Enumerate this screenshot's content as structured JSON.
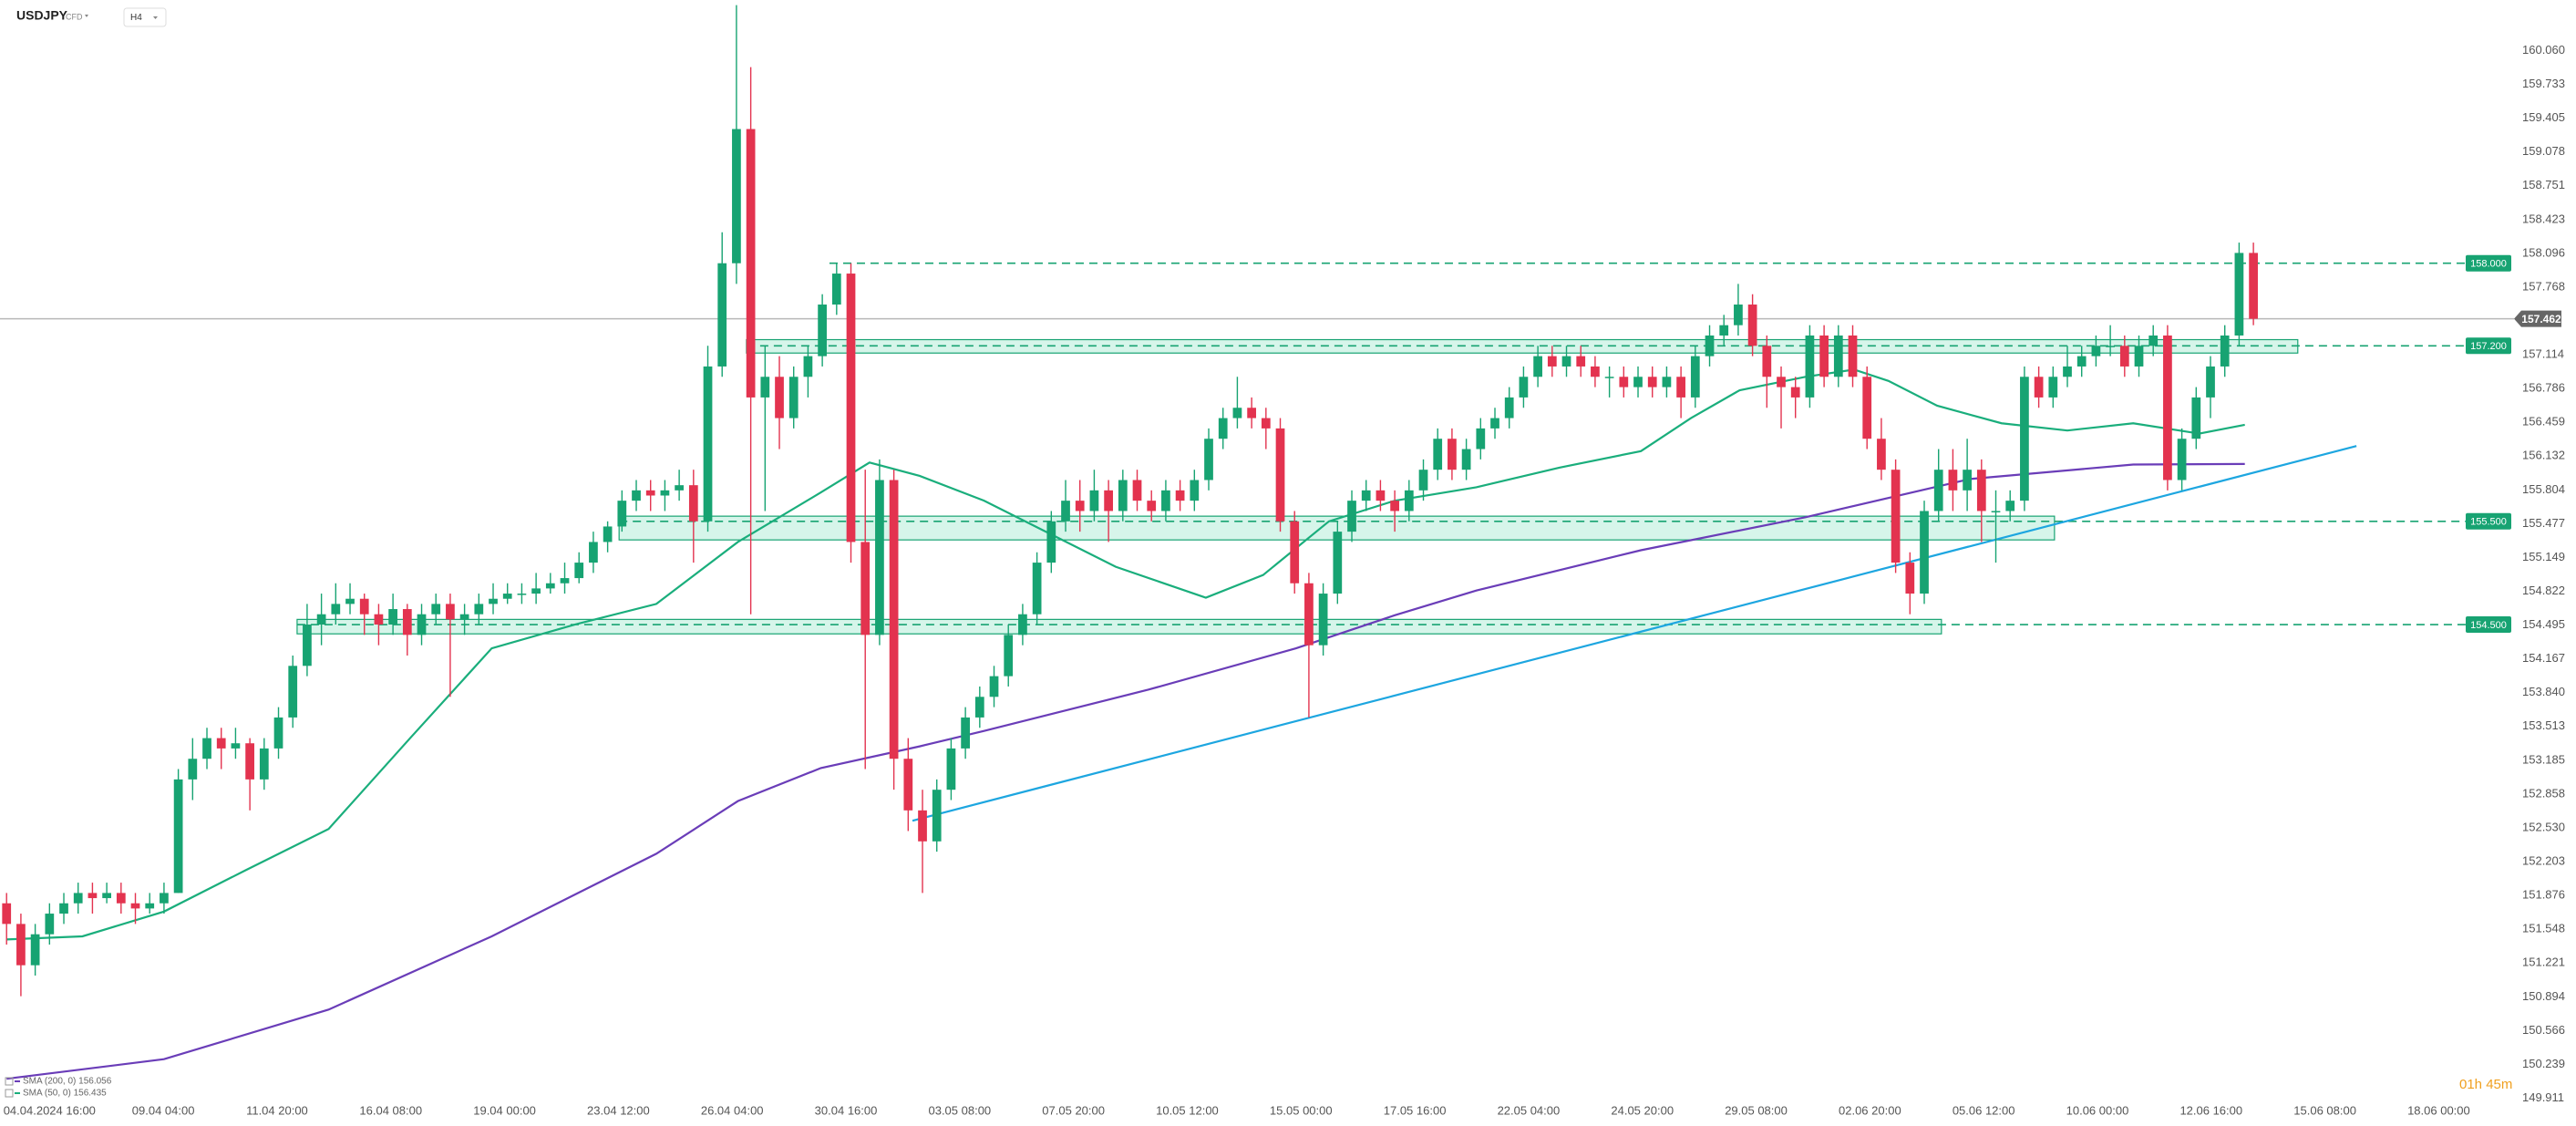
{
  "chart_data": {
    "type": "candlestick",
    "title": "USDJPY",
    "subtitle": "CFD",
    "timeframe": "H4",
    "timer": "01h 45m",
    "up_color": "#17a372",
    "down_color": "#e3334f",
    "grid": false,
    "xlim": [
      -0.46,
      174.7
    ],
    "ylim": [
      149.89,
      160.55
    ],
    "yticks": [
      {
        "value": 160.06,
        "label": "160.060"
      },
      159.733,
      159.405,
      159.078,
      158.751,
      158.423,
      158.096,
      157.768,
      157.114,
      156.786,
      156.459,
      156.132,
      155.804,
      155.477,
      155.149,
      154.822,
      154.495,
      154.167,
      {
        "value": 153.84,
        "label": "153.840"
      },
      153.513,
      153.185,
      152.858,
      {
        "value": 152.53,
        "label": "152.530"
      },
      152.203,
      151.876,
      151.548,
      151.221,
      150.894,
      150.566,
      150.239,
      149.911
    ],
    "xticks": [
      {
        "value": 3,
        "label": "04.04.2024 16:00"
      },
      {
        "value": 10.95,
        "label": "09.04 04:00"
      },
      {
        "value": 18.9,
        "label": "11.04 20:00"
      },
      {
        "value": 26.85,
        "label": "16.04 08:00"
      },
      {
        "value": 34.8,
        "label": "19.04 00:00"
      },
      {
        "value": 42.75,
        "label": "23.04 12:00"
      },
      {
        "value": 50.7,
        "label": "26.04 04:00"
      },
      {
        "value": 58.65,
        "label": "30.04 16:00"
      },
      {
        "value": 66.6,
        "label": "03.05 08:00"
      },
      {
        "value": 74.55,
        "label": "07.05 20:00"
      },
      {
        "value": 82.5,
        "label": "10.05 12:00"
      },
      {
        "value": 90.45,
        "label": "15.05 00:00"
      },
      {
        "value": 98.4,
        "label": "17.05 16:00"
      },
      {
        "value": 106.35,
        "label": "22.05 04:00"
      },
      {
        "value": 114.3,
        "label": "24.05 20:00"
      },
      {
        "value": 122.25,
        "label": "29.05 08:00"
      },
      {
        "value": 130.2,
        "label": "02.06 20:00"
      },
      {
        "value": 138.15,
        "label": "05.06 12:00"
      },
      {
        "value": 146.1,
        "label": "10.06 00:00"
      },
      {
        "value": 154.05,
        "label": "12.06 16:00"
      },
      {
        "value": 162,
        "label": "15.06 08:00"
      },
      {
        "value": 169.95,
        "label": "18.06 00:00"
      }
    ],
    "ohlc": [
      [
        151.8,
        151.9,
        151.4,
        151.6
      ],
      [
        151.6,
        151.7,
        150.9,
        151.2
      ],
      [
        151.2,
        151.6,
        151.1,
        151.5
      ],
      [
        151.5,
        151.8,
        151.4,
        151.7
      ],
      [
        151.7,
        151.9,
        151.6,
        151.8
      ],
      [
        151.8,
        152.0,
        151.7,
        151.9
      ],
      [
        151.9,
        152.0,
        151.7,
        151.85
      ],
      [
        151.85,
        152.0,
        151.8,
        151.9
      ],
      [
        151.9,
        152.0,
        151.7,
        151.8
      ],
      [
        151.8,
        151.9,
        151.6,
        151.75
      ],
      [
        151.75,
        151.9,
        151.7,
        151.8
      ],
      [
        151.8,
        152.0,
        151.7,
        151.9
      ],
      [
        151.9,
        153.1,
        151.9,
        153.0
      ],
      [
        153.0,
        153.4,
        152.8,
        153.2
      ],
      [
        153.2,
        153.5,
        153.1,
        153.4
      ],
      [
        153.4,
        153.5,
        153.1,
        153.3
      ],
      [
        153.3,
        153.5,
        153.2,
        153.35
      ],
      [
        153.35,
        153.4,
        152.7,
        153.0
      ],
      [
        153.0,
        153.4,
        152.9,
        153.3
      ],
      [
        153.3,
        153.7,
        153.2,
        153.6
      ],
      [
        153.6,
        154.2,
        153.5,
        154.1
      ],
      [
        154.1,
        154.7,
        154.0,
        154.5
      ],
      [
        154.5,
        154.8,
        154.3,
        154.6
      ],
      [
        154.6,
        154.9,
        154.5,
        154.7
      ],
      [
        154.7,
        154.9,
        154.6,
        154.75
      ],
      [
        154.75,
        154.8,
        154.4,
        154.6
      ],
      [
        154.6,
        154.7,
        154.3,
        154.5
      ],
      [
        154.5,
        154.8,
        154.4,
        154.65
      ],
      [
        154.65,
        154.7,
        154.2,
        154.4
      ],
      [
        154.4,
        154.7,
        154.3,
        154.6
      ],
      [
        154.6,
        154.8,
        154.5,
        154.7
      ],
      [
        154.7,
        154.8,
        153.8,
        154.55
      ],
      [
        154.55,
        154.7,
        154.4,
        154.6
      ],
      [
        154.6,
        154.8,
        154.5,
        154.7
      ],
      [
        154.7,
        154.9,
        154.6,
        154.75
      ],
      [
        154.75,
        154.9,
        154.7,
        154.8
      ],
      [
        154.8,
        154.9,
        154.7,
        154.8
      ],
      [
        154.8,
        155.0,
        154.7,
        154.85
      ],
      [
        154.85,
        155.0,
        154.8,
        154.9
      ],
      [
        154.9,
        155.1,
        154.8,
        154.95
      ],
      [
        154.95,
        155.2,
        154.9,
        155.1
      ],
      [
        155.1,
        155.4,
        155.0,
        155.3
      ],
      [
        155.3,
        155.5,
        155.2,
        155.45
      ],
      [
        155.45,
        155.8,
        155.4,
        155.7
      ],
      [
        155.7,
        155.9,
        155.6,
        155.8
      ],
      [
        155.8,
        155.9,
        155.6,
        155.75
      ],
      [
        155.75,
        155.9,
        155.6,
        155.8
      ],
      [
        155.8,
        156.0,
        155.7,
        155.85
      ],
      [
        155.85,
        156.0,
        155.1,
        155.5
      ],
      [
        155.5,
        157.2,
        155.4,
        157.0
      ],
      [
        157.0,
        158.3,
        156.9,
        158.0
      ],
      [
        158.0,
        160.5,
        157.8,
        159.3
      ],
      [
        159.3,
        159.9,
        154.6,
        156.7
      ],
      [
        156.7,
        157.2,
        155.6,
        156.9
      ],
      [
        156.9,
        157.1,
        156.2,
        156.5
      ],
      [
        156.5,
        157.0,
        156.4,
        156.9
      ],
      [
        156.9,
        157.2,
        156.7,
        157.1
      ],
      [
        157.1,
        157.7,
        157.0,
        157.6
      ],
      [
        157.6,
        158.0,
        157.5,
        157.9
      ],
      [
        157.9,
        158.0,
        155.1,
        155.3
      ],
      [
        155.3,
        156.0,
        153.1,
        154.4
      ],
      [
        154.4,
        156.1,
        154.3,
        155.9
      ],
      [
        155.9,
        156.0,
        152.9,
        153.2
      ],
      [
        153.2,
        153.4,
        152.5,
        152.7
      ],
      [
        152.7,
        152.9,
        151.9,
        152.4
      ],
      [
        152.4,
        153.0,
        152.3,
        152.9
      ],
      [
        152.9,
        153.4,
        152.8,
        153.3
      ],
      [
        153.3,
        153.7,
        153.2,
        153.6
      ],
      [
        153.6,
        153.9,
        153.5,
        153.8
      ],
      [
        153.8,
        154.1,
        153.7,
        154.0
      ],
      [
        154.0,
        154.5,
        153.9,
        154.4
      ],
      [
        154.4,
        154.7,
        154.3,
        154.6
      ],
      [
        154.6,
        155.2,
        154.5,
        155.1
      ],
      [
        155.1,
        155.6,
        155.0,
        155.5
      ],
      [
        155.5,
        155.9,
        155.4,
        155.7
      ],
      [
        155.7,
        155.9,
        155.4,
        155.6
      ],
      [
        155.6,
        156.0,
        155.5,
        155.8
      ],
      [
        155.8,
        155.9,
        155.3,
        155.6
      ],
      [
        155.6,
        156.0,
        155.5,
        155.9
      ],
      [
        155.9,
        156.0,
        155.6,
        155.7
      ],
      [
        155.7,
        155.8,
        155.5,
        155.6
      ],
      [
        155.6,
        155.9,
        155.5,
        155.8
      ],
      [
        155.8,
        155.9,
        155.6,
        155.7
      ],
      [
        155.7,
        156.0,
        155.6,
        155.9
      ],
      [
        155.9,
        156.4,
        155.8,
        156.3
      ],
      [
        156.3,
        156.6,
        156.2,
        156.5
      ],
      [
        156.5,
        156.9,
        156.4,
        156.6
      ],
      [
        156.6,
        156.7,
        156.4,
        156.5
      ],
      [
        156.5,
        156.6,
        156.2,
        156.4
      ],
      [
        156.4,
        156.5,
        155.4,
        155.5
      ],
      [
        155.5,
        155.6,
        154.8,
        154.9
      ],
      [
        154.9,
        155.0,
        153.6,
        154.3
      ],
      [
        154.3,
        154.9,
        154.2,
        154.8
      ],
      [
        154.8,
        155.5,
        154.7,
        155.4
      ],
      [
        155.4,
        155.8,
        155.3,
        155.7
      ],
      [
        155.7,
        155.9,
        155.6,
        155.8
      ],
      [
        155.8,
        155.9,
        155.6,
        155.7
      ],
      [
        155.7,
        155.8,
        155.4,
        155.6
      ],
      [
        155.6,
        155.9,
        155.5,
        155.8
      ],
      [
        155.8,
        156.1,
        155.7,
        156.0
      ],
      [
        156.0,
        156.4,
        155.9,
        156.3
      ],
      [
        156.3,
        156.4,
        155.9,
        156.0
      ],
      [
        156.0,
        156.3,
        155.9,
        156.2
      ],
      [
        156.2,
        156.5,
        156.1,
        156.4
      ],
      [
        156.4,
        156.6,
        156.3,
        156.5
      ],
      [
        156.5,
        156.8,
        156.4,
        156.7
      ],
      [
        156.7,
        157.0,
        156.6,
        156.9
      ],
      [
        156.9,
        157.2,
        156.8,
        157.1
      ],
      [
        157.1,
        157.2,
        156.9,
        157.0
      ],
      [
        157.0,
        157.2,
        156.9,
        157.1
      ],
      [
        157.1,
        157.2,
        156.9,
        157.0
      ],
      [
        157.0,
        157.1,
        156.8,
        156.9
      ],
      [
        156.9,
        157.0,
        156.7,
        156.9
      ],
      [
        156.9,
        157.0,
        156.7,
        156.8
      ],
      [
        156.8,
        157.0,
        156.7,
        156.9
      ],
      [
        156.9,
        157.0,
        156.7,
        156.8
      ],
      [
        156.8,
        157.0,
        156.7,
        156.9
      ],
      [
        156.9,
        157.0,
        156.5,
        156.7
      ],
      [
        156.7,
        157.2,
        156.6,
        157.1
      ],
      [
        157.1,
        157.4,
        157.0,
        157.3
      ],
      [
        157.3,
        157.5,
        157.2,
        157.4
      ],
      [
        157.4,
        157.8,
        157.3,
        157.6
      ],
      [
        157.6,
        157.7,
        157.1,
        157.2
      ],
      [
        157.2,
        157.3,
        156.6,
        156.9
      ],
      [
        156.9,
        157.0,
        156.4,
        156.8
      ],
      [
        156.8,
        156.9,
        156.5,
        156.7
      ],
      [
        156.7,
        157.4,
        156.6,
        157.3
      ],
      [
        157.3,
        157.4,
        156.8,
        156.9
      ],
      [
        156.9,
        157.4,
        156.8,
        157.3
      ],
      [
        157.3,
        157.4,
        156.8,
        156.9
      ],
      [
        156.9,
        157.0,
        156.2,
        156.3
      ],
      [
        156.3,
        156.5,
        155.9,
        156.0
      ],
      [
        156.0,
        156.1,
        155.0,
        155.1
      ],
      [
        155.1,
        155.2,
        154.6,
        154.8
      ],
      [
        154.8,
        155.7,
        154.7,
        155.6
      ],
      [
        155.6,
        156.2,
        155.5,
        156.0
      ],
      [
        156.0,
        156.2,
        155.6,
        155.8
      ],
      [
        155.8,
        156.3,
        155.6,
        156.0
      ],
      [
        156.0,
        156.1,
        155.3,
        155.6
      ],
      [
        155.6,
        155.8,
        155.1,
        155.6
      ],
      [
        155.6,
        155.8,
        155.5,
        155.7
      ],
      [
        155.7,
        157.0,
        155.6,
        156.9
      ],
      [
        156.9,
        157.0,
        156.6,
        156.7
      ],
      [
        156.7,
        157.0,
        156.6,
        156.9
      ],
      [
        156.9,
        157.2,
        156.8,
        157.0
      ],
      [
        157.0,
        157.2,
        156.9,
        157.1
      ],
      [
        157.1,
        157.3,
        157.0,
        157.2
      ],
      [
        157.2,
        157.4,
        157.1,
        157.2
      ],
      [
        157.2,
        157.3,
        156.9,
        157.0
      ],
      [
        157.0,
        157.3,
        156.9,
        157.2
      ],
      [
        157.2,
        157.4,
        157.1,
        157.3
      ],
      [
        157.3,
        157.4,
        155.8,
        155.9
      ],
      [
        155.9,
        156.4,
        155.8,
        156.3
      ],
      [
        156.3,
        156.8,
        156.2,
        156.7
      ],
      [
        156.7,
        157.1,
        156.5,
        157.0
      ],
      [
        157.0,
        157.4,
        156.9,
        157.3
      ],
      [
        157.3,
        158.2,
        157.2,
        158.1
      ],
      [
        158.1,
        158.2,
        157.4,
        157.462
      ]
    ],
    "series": [
      {
        "name": "SMA (200, 0) 156.056",
        "color": "#6a3db8",
        "x": [
          0,
          11,
          22.5,
          33.9,
          45.4,
          51.1,
          56.9,
          63.8,
          68.3,
          79.8,
          90.1,
          97,
          102.7,
          114.2,
          125.7,
          137.2,
          148.6,
          156.4
        ],
        "values": [
          150.1,
          150.29,
          150.77,
          151.48,
          152.28,
          152.79,
          153.11,
          153.32,
          153.47,
          153.87,
          154.27,
          154.59,
          154.83,
          155.22,
          155.54,
          155.91,
          156.05,
          156.056
        ]
      },
      {
        "name": "SMA (50, 0) 156.435",
        "color": "#1aae7c",
        "x": [
          0,
          5.3,
          11,
          16.7,
          22.5,
          28.2,
          33.9,
          39.7,
          45.4,
          51.1,
          56.9,
          60.3,
          63.8,
          68.3,
          72.9,
          77.5,
          83.8,
          87.8,
          92.4,
          97,
          102.7,
          108.5,
          114.2,
          117.7,
          121.1,
          125.7,
          129.1,
          131.5,
          134.9,
          139.4,
          144,
          148.6,
          153.2,
          156.4
        ],
        "values": [
          151.45,
          151.48,
          151.72,
          152.12,
          152.52,
          153.4,
          154.27,
          154.5,
          154.7,
          155.3,
          155.78,
          156.07,
          155.94,
          155.7,
          155.38,
          155.06,
          154.76,
          154.98,
          155.5,
          155.7,
          155.83,
          156.02,
          156.18,
          156.5,
          156.77,
          156.9,
          156.97,
          156.86,
          156.62,
          156.45,
          156.38,
          156.45,
          156.35,
          156.435
        ]
      }
    ],
    "trendline": {
      "color": "#1da6e0",
      "x": [
        63.3,
        164.2
      ],
      "values": [
        152.6,
        156.23
      ]
    },
    "zones": [
      {
        "x": [
          51.7,
          160.1
        ],
        "y": [
          157.13,
          157.26
        ]
      },
      {
        "x": [
          42.8,
          143.1
        ],
        "y": [
          155.32,
          155.55
        ]
      },
      {
        "x": [
          20.3,
          135.2
        ],
        "y": [
          154.41,
          154.55
        ]
      }
    ],
    "level_color": "#17a372",
    "levels": [
      {
        "value": 158,
        "label": "158.000",
        "x0": 57.5
      },
      {
        "value": 157.2,
        "label": "157.200",
        "x0": 51.7
      },
      {
        "value": 155.5,
        "label": "155.500",
        "x0": 42.8
      },
      {
        "value": 154.5,
        "label": "154.500",
        "x0": 20.3
      }
    ],
    "current_price": 157.462
  }
}
